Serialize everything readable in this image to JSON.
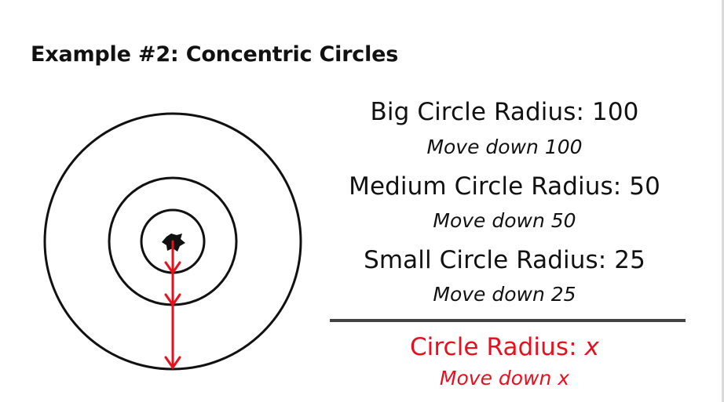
{
  "title": "Example #2: Concentric Circles",
  "entries": [
    {
      "label": "Big Circle Radius: 100",
      "sub": "Move down 100"
    },
    {
      "label": "Medium Circle Radius: 50",
      "sub": "Move down 50"
    },
    {
      "label": "Small Circle Radius: 25",
      "sub": "Move down 25"
    }
  ],
  "general": {
    "label_prefix": "Circle Radius: ",
    "label_var": "x",
    "sub": "Move down x"
  },
  "colors": {
    "ink": "#111111",
    "accent": "#e8101c",
    "divider": "#444444"
  },
  "circles": [
    {
      "name": "big-circle",
      "radius": 100
    },
    {
      "name": "medium-circle",
      "radius": 50
    },
    {
      "name": "small-circle",
      "radius": 25
    }
  ]
}
